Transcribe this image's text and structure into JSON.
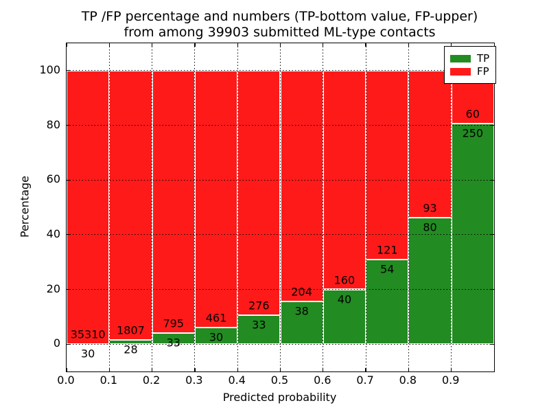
{
  "title": {
    "line1": "TP /FP percentage and numbers (TP-bottom value, FP-upper)",
    "line2": "from among 39903 submitted ML-type contacts"
  },
  "axes": {
    "xlabel": "Predicted probability",
    "ylabel": "Percentage",
    "x_tick_labels": [
      "0.0",
      "0.1",
      "0.2",
      "0.3",
      "0.4",
      "0.5",
      "0.6",
      "0.7",
      "0.8",
      "0.9"
    ],
    "y_tick_labels": [
      "0",
      "20",
      "40",
      "60",
      "80",
      "100"
    ],
    "y_tick_values": [
      0,
      20,
      40,
      60,
      80,
      100
    ]
  },
  "legend": {
    "items": [
      {
        "label": "TP",
        "color": "#228b22"
      },
      {
        "label": "FP",
        "color": "#ff1a1a"
      }
    ]
  },
  "chart_data": {
    "type": "bar",
    "stacked": true,
    "normalized": "percent-of-bin",
    "title": "TP /FP percentage and numbers (TP-bottom value, FP-upper) from among 39903 submitted ML-type contacts",
    "xlabel": "Predicted probability",
    "ylabel": "Percentage",
    "xlim": [
      0.0,
      1.0
    ],
    "ylim": [
      -10,
      110
    ],
    "grid": "dotted, both axes",
    "legend_position": "upper right",
    "total_contacts": 39903,
    "bin_edges": [
      0.0,
      0.1,
      0.2,
      0.3,
      0.4,
      0.5,
      0.6,
      0.7,
      0.8,
      0.9,
      1.0
    ],
    "categories": [
      "0.0-0.1",
      "0.1-0.2",
      "0.2-0.3",
      "0.3-0.4",
      "0.4-0.5",
      "0.5-0.6",
      "0.6-0.7",
      "0.7-0.8",
      "0.8-0.9",
      "0.9-1.0"
    ],
    "series": [
      {
        "name": "TP",
        "color": "#228b22",
        "counts": [
          30,
          28,
          33,
          30,
          33,
          38,
          40,
          54,
          80,
          250
        ]
      },
      {
        "name": "FP",
        "color": "#ff1a1a",
        "counts": [
          35310,
          1807,
          795,
          461,
          276,
          204,
          160,
          121,
          93,
          60
        ]
      }
    ],
    "tp_percent_of_bin": [
      0.08,
      1.53,
      3.99,
      6.11,
      10.68,
      15.7,
      20.0,
      30.86,
      46.24,
      80.65
    ]
  },
  "colors": {
    "tp": "#228b22",
    "fp": "#ff1a1a",
    "bar_edge": "#ffffff",
    "grid": "#000000",
    "frame": "#000000",
    "background": "#ffffff"
  }
}
